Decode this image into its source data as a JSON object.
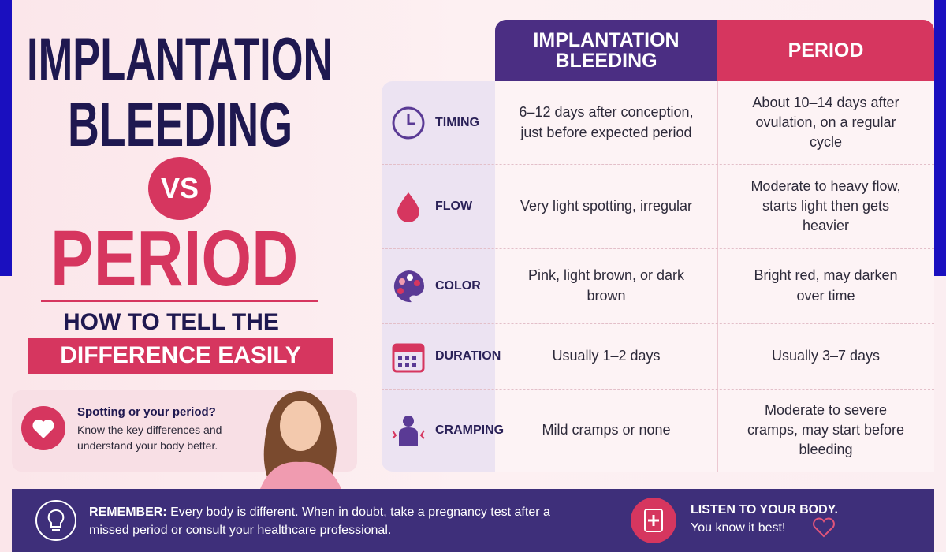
{
  "header": {
    "title_line1": "IMPLANTATION",
    "title_line2": "BLEEDING",
    "vs": "VS",
    "title_line3": "PERIOD",
    "subtitle_line1": "HOW TO TELL THE",
    "subtitle_line2": "DIFFERENCE EASILY"
  },
  "callout": {
    "title": "Spotting or your period?",
    "text": "Know the key differences and understand your body better."
  },
  "table": {
    "columns": [
      "IMPLANTATION BLEEDING",
      "PERIOD"
    ],
    "rows": [
      [
        "TIMING",
        "6–12 days after conception, just before expected period",
        "About 10–14 days after ovulation, on a regular cycle"
      ],
      [
        "FLOW",
        "Very light spotting, irregular",
        "Moderate to heavy flow, starts light then gets heavier"
      ],
      [
        "COLOR",
        "Pink, light brown, or dark brown",
        "Bright red, may darken over time"
      ],
      [
        "DURATION",
        "Usually 1–2 days",
        "Usually 3–7 days"
      ],
      [
        "CRAMPING",
        "Mild cramps or none",
        "Moderate to severe cramps, may start before bleeding"
      ]
    ]
  },
  "footer": {
    "remember_label": "REMEMBER:",
    "remember_text": "Every body is different. When in doubt, take a pregnancy test after a missed period or consult your healthcare professional.",
    "listen_title": "LISTEN TO YOUR BODY.",
    "listen_text": "You know it best!"
  }
}
